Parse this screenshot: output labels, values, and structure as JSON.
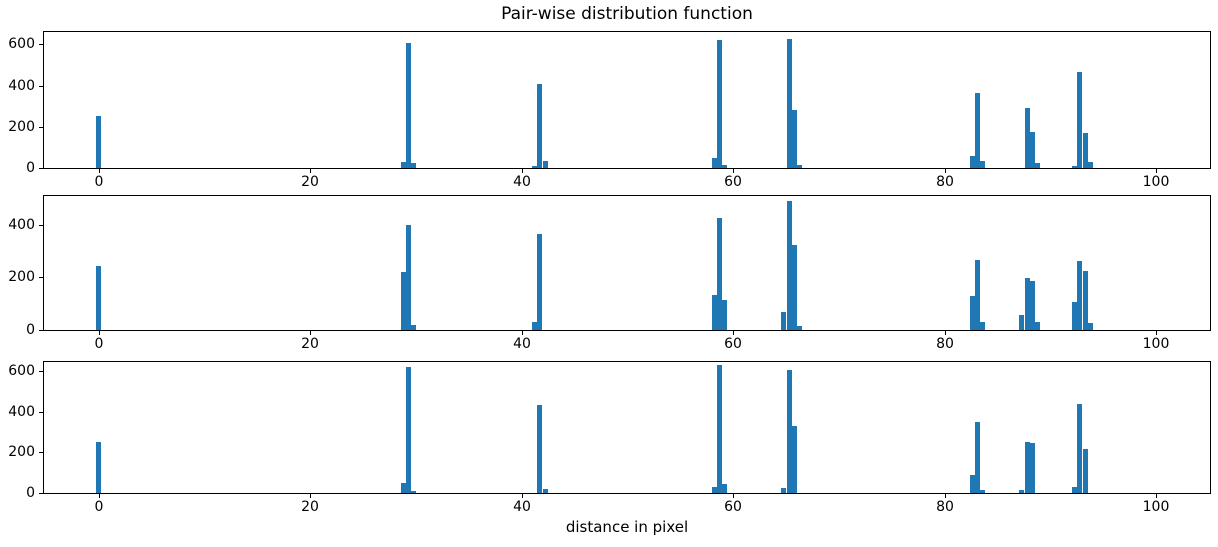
{
  "figure": {
    "title": "Pair-wise distribution function",
    "xlabel": "distance in pixel",
    "bar_color": "#1f77b4",
    "text_color": "#000000",
    "background_color": "#ffffff"
  },
  "chart_data": [
    {
      "type": "bar",
      "name": "pair-wise-distribution-top",
      "title": "",
      "xlabel": "",
      "ylabel": "",
      "xlim": [
        -5.2,
        105.1
      ],
      "ylim": [
        0,
        660
      ],
      "xticks": [
        0,
        20,
        40,
        60,
        80,
        100
      ],
      "yticks": [
        0,
        200,
        400,
        600
      ],
      "grid": false,
      "legend": null,
      "bar_width": 0.5,
      "bars": [
        [
          0.0,
          250
        ],
        [
          28.8,
          30
        ],
        [
          29.3,
          605
        ],
        [
          29.8,
          25
        ],
        [
          41.2,
          12
        ],
        [
          41.7,
          410
        ],
        [
          42.2,
          35
        ],
        [
          58.2,
          50
        ],
        [
          58.7,
          620
        ],
        [
          59.2,
          15
        ],
        [
          65.3,
          625
        ],
        [
          65.8,
          280
        ],
        [
          66.3,
          15
        ],
        [
          82.6,
          60
        ],
        [
          83.1,
          365
        ],
        [
          83.6,
          35
        ],
        [
          87.8,
          290
        ],
        [
          88.3,
          175
        ],
        [
          88.8,
          25
        ],
        [
          92.3,
          12
        ],
        [
          92.8,
          465
        ],
        [
          93.3,
          170
        ],
        [
          93.8,
          30
        ]
      ]
    },
    {
      "type": "bar",
      "name": "pair-wise-distribution-middle",
      "title": "",
      "xlabel": "",
      "ylabel": "",
      "xlim": [
        -5.2,
        105.1
      ],
      "ylim": [
        0,
        510
      ],
      "xticks": [
        0,
        20,
        40,
        60,
        80,
        100
      ],
      "yticks": [
        0,
        200,
        400
      ],
      "grid": false,
      "legend": null,
      "bar_width": 0.5,
      "bars": [
        [
          0.0,
          245
        ],
        [
          28.8,
          220
        ],
        [
          29.3,
          400
        ],
        [
          29.8,
          20
        ],
        [
          41.2,
          30
        ],
        [
          41.7,
          365
        ],
        [
          58.2,
          135
        ],
        [
          58.7,
          425
        ],
        [
          59.2,
          115
        ],
        [
          64.8,
          67
        ],
        [
          65.3,
          490
        ],
        [
          65.8,
          323
        ],
        [
          66.3,
          15
        ],
        [
          82.6,
          130
        ],
        [
          83.1,
          268
        ],
        [
          83.6,
          32
        ],
        [
          87.3,
          57
        ],
        [
          87.8,
          198
        ],
        [
          88.3,
          188
        ],
        [
          88.8,
          32
        ],
        [
          92.3,
          106
        ],
        [
          92.8,
          262
        ],
        [
          93.3,
          226
        ],
        [
          93.8,
          28
        ]
      ]
    },
    {
      "type": "bar",
      "name": "pair-wise-distribution-bottom",
      "title": "",
      "xlabel": "distance in pixel",
      "ylabel": "",
      "xlim": [
        -5.2,
        105.1
      ],
      "ylim": [
        0,
        645
      ],
      "xticks": [
        0,
        20,
        40,
        60,
        80,
        100
      ],
      "yticks": [
        0,
        200,
        400,
        600
      ],
      "grid": false,
      "legend": null,
      "bar_width": 0.5,
      "bars": [
        [
          0.0,
          250
        ],
        [
          28.8,
          50
        ],
        [
          29.3,
          620
        ],
        [
          29.8,
          12
        ],
        [
          41.7,
          435
        ],
        [
          42.2,
          22
        ],
        [
          58.2,
          30
        ],
        [
          58.7,
          628
        ],
        [
          59.2,
          42
        ],
        [
          64.8,
          25
        ],
        [
          65.3,
          605
        ],
        [
          65.8,
          328
        ],
        [
          82.6,
          88
        ],
        [
          83.1,
          352
        ],
        [
          83.6,
          15
        ],
        [
          87.3,
          15
        ],
        [
          87.8,
          252
        ],
        [
          88.3,
          245
        ],
        [
          92.3,
          32
        ],
        [
          92.8,
          438
        ],
        [
          93.3,
          215
        ]
      ]
    }
  ]
}
